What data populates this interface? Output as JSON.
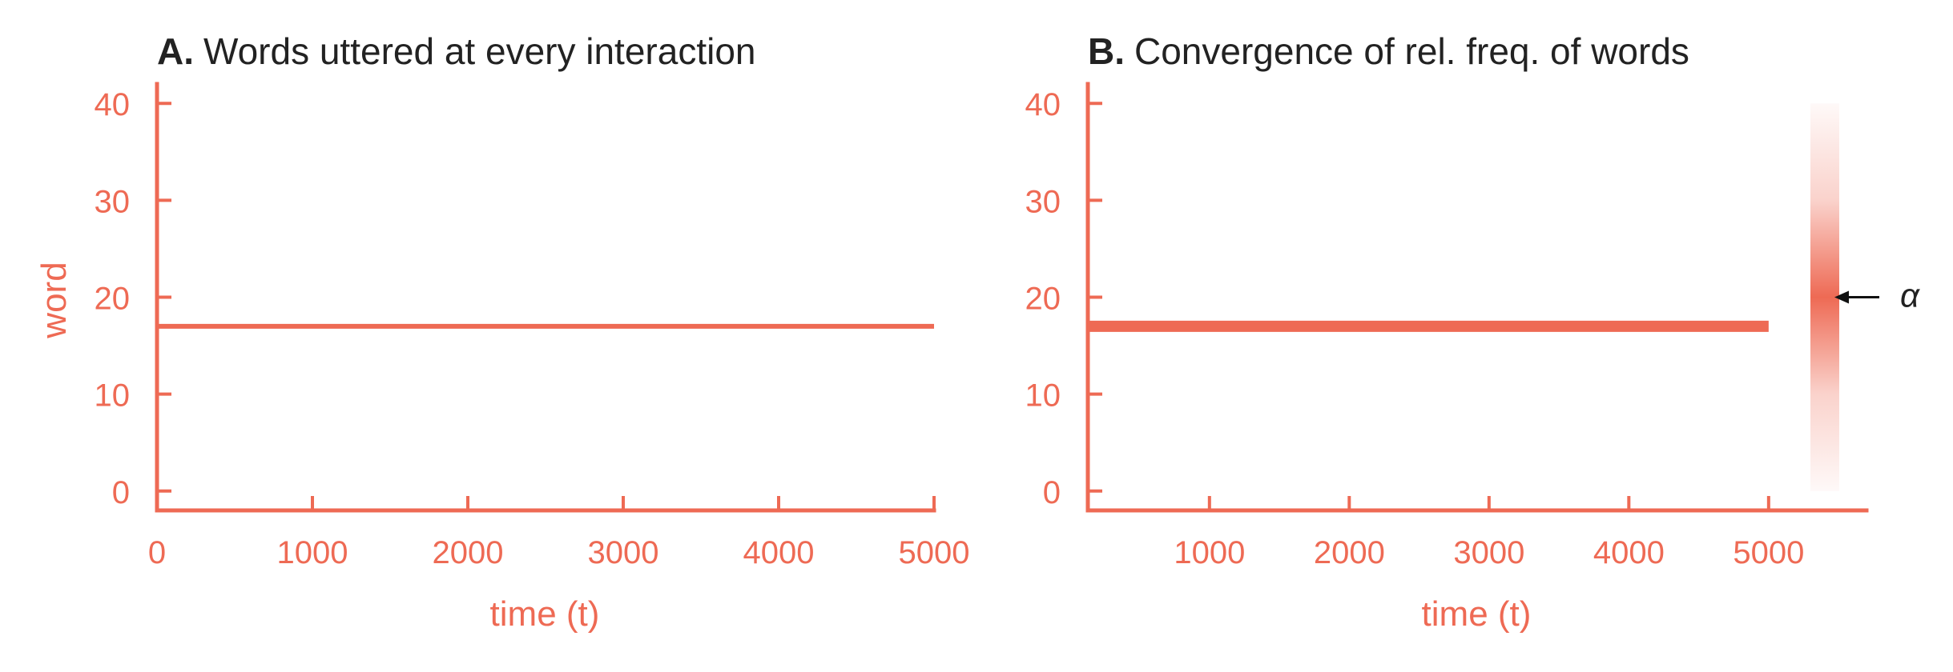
{
  "colors": {
    "accent": "#ee6a54",
    "title": "#222222",
    "arrow": "#111111"
  },
  "chart_data": [
    {
      "type": "line",
      "panel_letter": "A.",
      "title": "Words uttered at every interaction",
      "xlabel": "time (t)",
      "ylabel": "word",
      "xlim": [
        0,
        5000
      ],
      "ylim": [
        -2,
        42
      ],
      "xticks": [
        0,
        1000,
        2000,
        3000,
        4000,
        5000
      ],
      "xtick_labels": [
        "0",
        "1000",
        "2000",
        "3000",
        "4000",
        "5000"
      ],
      "yticks": [
        0,
        10,
        20,
        30,
        40
      ],
      "ytick_labels": [
        "0",
        "10",
        "20",
        "30",
        "40"
      ],
      "grid": false,
      "legend": "none",
      "series": [
        {
          "x": [
            0,
            5000
          ],
          "y": [
            17,
            17
          ]
        }
      ]
    },
    {
      "type": "line",
      "panel_letter": "B.",
      "title": "Convergence of rel. freq. of words",
      "xlabel": "time (t)",
      "xlim": [
        130,
        5700
      ],
      "ylim": [
        -2,
        42
      ],
      "xticks": [
        1000,
        2000,
        3000,
        4000,
        5000
      ],
      "xtick_labels": [
        "1000",
        "2000",
        "3000",
        "4000",
        "5000"
      ],
      "yticks": [
        0,
        10,
        20,
        30,
        40
      ],
      "ytick_labels": [
        "0",
        "10",
        "20",
        "30",
        "40"
      ],
      "grid": false,
      "legend": "none",
      "series": [
        {
          "x": [
            130,
            5000
          ],
          "y": [
            17,
            17
          ]
        }
      ],
      "distribution": {
        "y_range": [
          0,
          40
        ],
        "peak": 20,
        "annotation": "α"
      }
    }
  ]
}
